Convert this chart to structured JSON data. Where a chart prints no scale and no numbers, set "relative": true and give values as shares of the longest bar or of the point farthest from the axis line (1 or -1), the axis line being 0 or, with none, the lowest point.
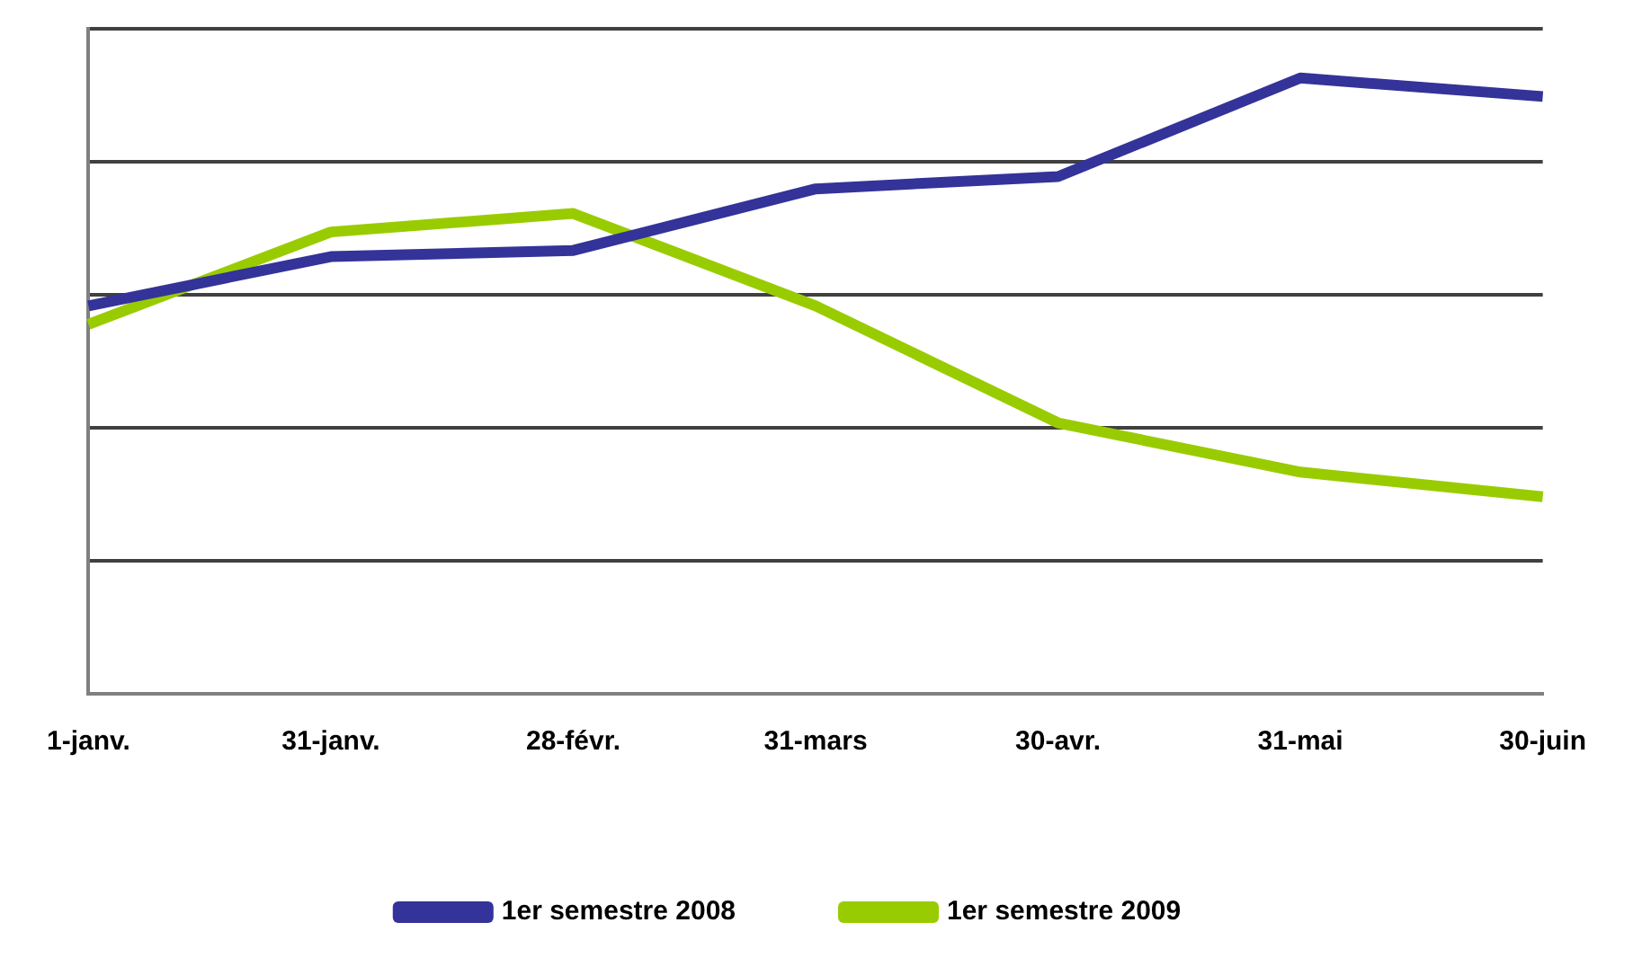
{
  "chart_data": {
    "type": "line",
    "relative": true,
    "categories": [
      "1-janv.",
      "31-janv.",
      "28-févr.",
      "31-mars",
      "30-avr.",
      "31-mai",
      "30-juin"
    ],
    "series": [
      {
        "name": "1er semestre 2008",
        "color": "#333399",
        "values": [
          0.63,
          0.71,
          0.72,
          0.82,
          0.84,
          1,
          0.97
        ]
      },
      {
        "name": "1er semestre 2009",
        "color": "#99cc00",
        "values": [
          0.6,
          0.75,
          0.78,
          0.63,
          0.44,
          0.36,
          0.32
        ]
      }
    ],
    "grid": "y",
    "legend": "bottom",
    "marker": "none",
    "line_style": "solid"
  }
}
